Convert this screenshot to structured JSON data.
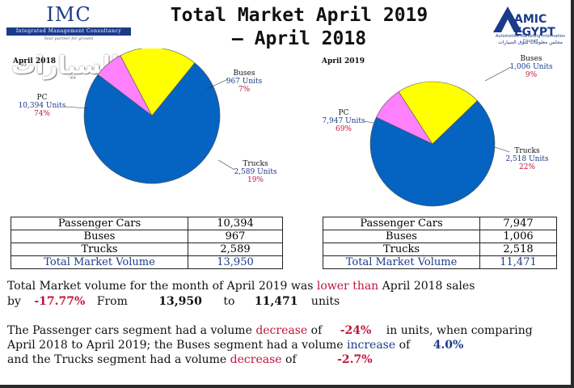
{
  "header": {
    "title_line1": "Total Market April 2019",
    "title_line2": "– April 2018",
    "imc_logo": {
      "name": "IMC",
      "tagline": "Integrated Management Consultancy",
      "slogan": "Your partner for growth"
    },
    "amic_logo": {
      "line1": "AMIC",
      "line2": "EGYPT",
      "subtitle": "Automotive Marketing Information Council",
      "subtitle_ar": "مجلس معلومات سوق السيارات"
    }
  },
  "watermark": "عالم السيارات",
  "chart_data": [
    {
      "type": "pie",
      "title": "April 2018",
      "slices": [
        {
          "label": "PC",
          "units_text": "10,394 Units",
          "pct_text": "74%",
          "value": 10394,
          "color": "#0563c1"
        },
        {
          "label": "Buses",
          "units_text": "967 Units",
          "pct_text": "7%",
          "value": 967,
          "color": "#ff80ff"
        },
        {
          "label": "Trucks",
          "units_text": "2,589 Units",
          "pct_text": "19%",
          "value": 2589,
          "color": "#ffff00"
        }
      ]
    },
    {
      "type": "pie",
      "title": "April 2019",
      "slices": [
        {
          "label": "PC",
          "units_text": "7,947 Units",
          "pct_text": "69%",
          "value": 7947,
          "color": "#0563c1"
        },
        {
          "label": "Buses",
          "units_text": "1,006 Units",
          "pct_text": "9%",
          "value": 1006,
          "color": "#ff80ff"
        },
        {
          "label": "Trucks",
          "units_text": "2,518 Units",
          "pct_text": "22%",
          "value": 2518,
          "color": "#ffff00"
        }
      ]
    }
  ],
  "tables": {
    "left": {
      "rows": [
        {
          "label": "Passenger Cars",
          "value": "10,394"
        },
        {
          "label": "Buses",
          "value": "967"
        },
        {
          "label": "Trucks",
          "value": "2,589"
        }
      ],
      "total": {
        "label": "Total Market Volume",
        "value": "13,950"
      }
    },
    "right": {
      "rows": [
        {
          "label": "Passenger Cars",
          "value": "7,947"
        },
        {
          "label": "Buses",
          "value": "1,006"
        },
        {
          "label": "Trucks",
          "value": "2,518"
        }
      ],
      "total": {
        "label": "Total Market Volume",
        "value": "11,471"
      }
    }
  },
  "summary": {
    "p1_a": "Total Market volume for the month of April 2019 was",
    "p1_b": "lower than",
    "p1_c": "April 2018 sales",
    "p1_by": "by",
    "p1_pct": "-17.77%",
    "p1_from": "From",
    "p1_v1": "13,950",
    "p1_to": "to",
    "p1_v2": "11,471",
    "p1_units": "units",
    "p2_a": "The Passenger cars segment had a volume",
    "p2_dec": "decrease",
    "p2_of": "of",
    "p2_pct": "-24%",
    "p2_rest": "in units, when comparing",
    "p3_a": "April 2018 to April 2019; the Buses segment had a volume",
    "p3_inc": "increase",
    "p3_of": "of",
    "p3_pct": "4.0%",
    "p4_a": "and the Trucks segment had a volume",
    "p4_dec": "decrease",
    "p4_of": "of",
    "p4_pct": "-2.7%"
  },
  "colors": {
    "accent_blue": "#1b3a8a",
    "accent_red": "#c0143c",
    "pc": "#0563c1",
    "buses": "#ff80ff",
    "trucks": "#ffff00"
  }
}
